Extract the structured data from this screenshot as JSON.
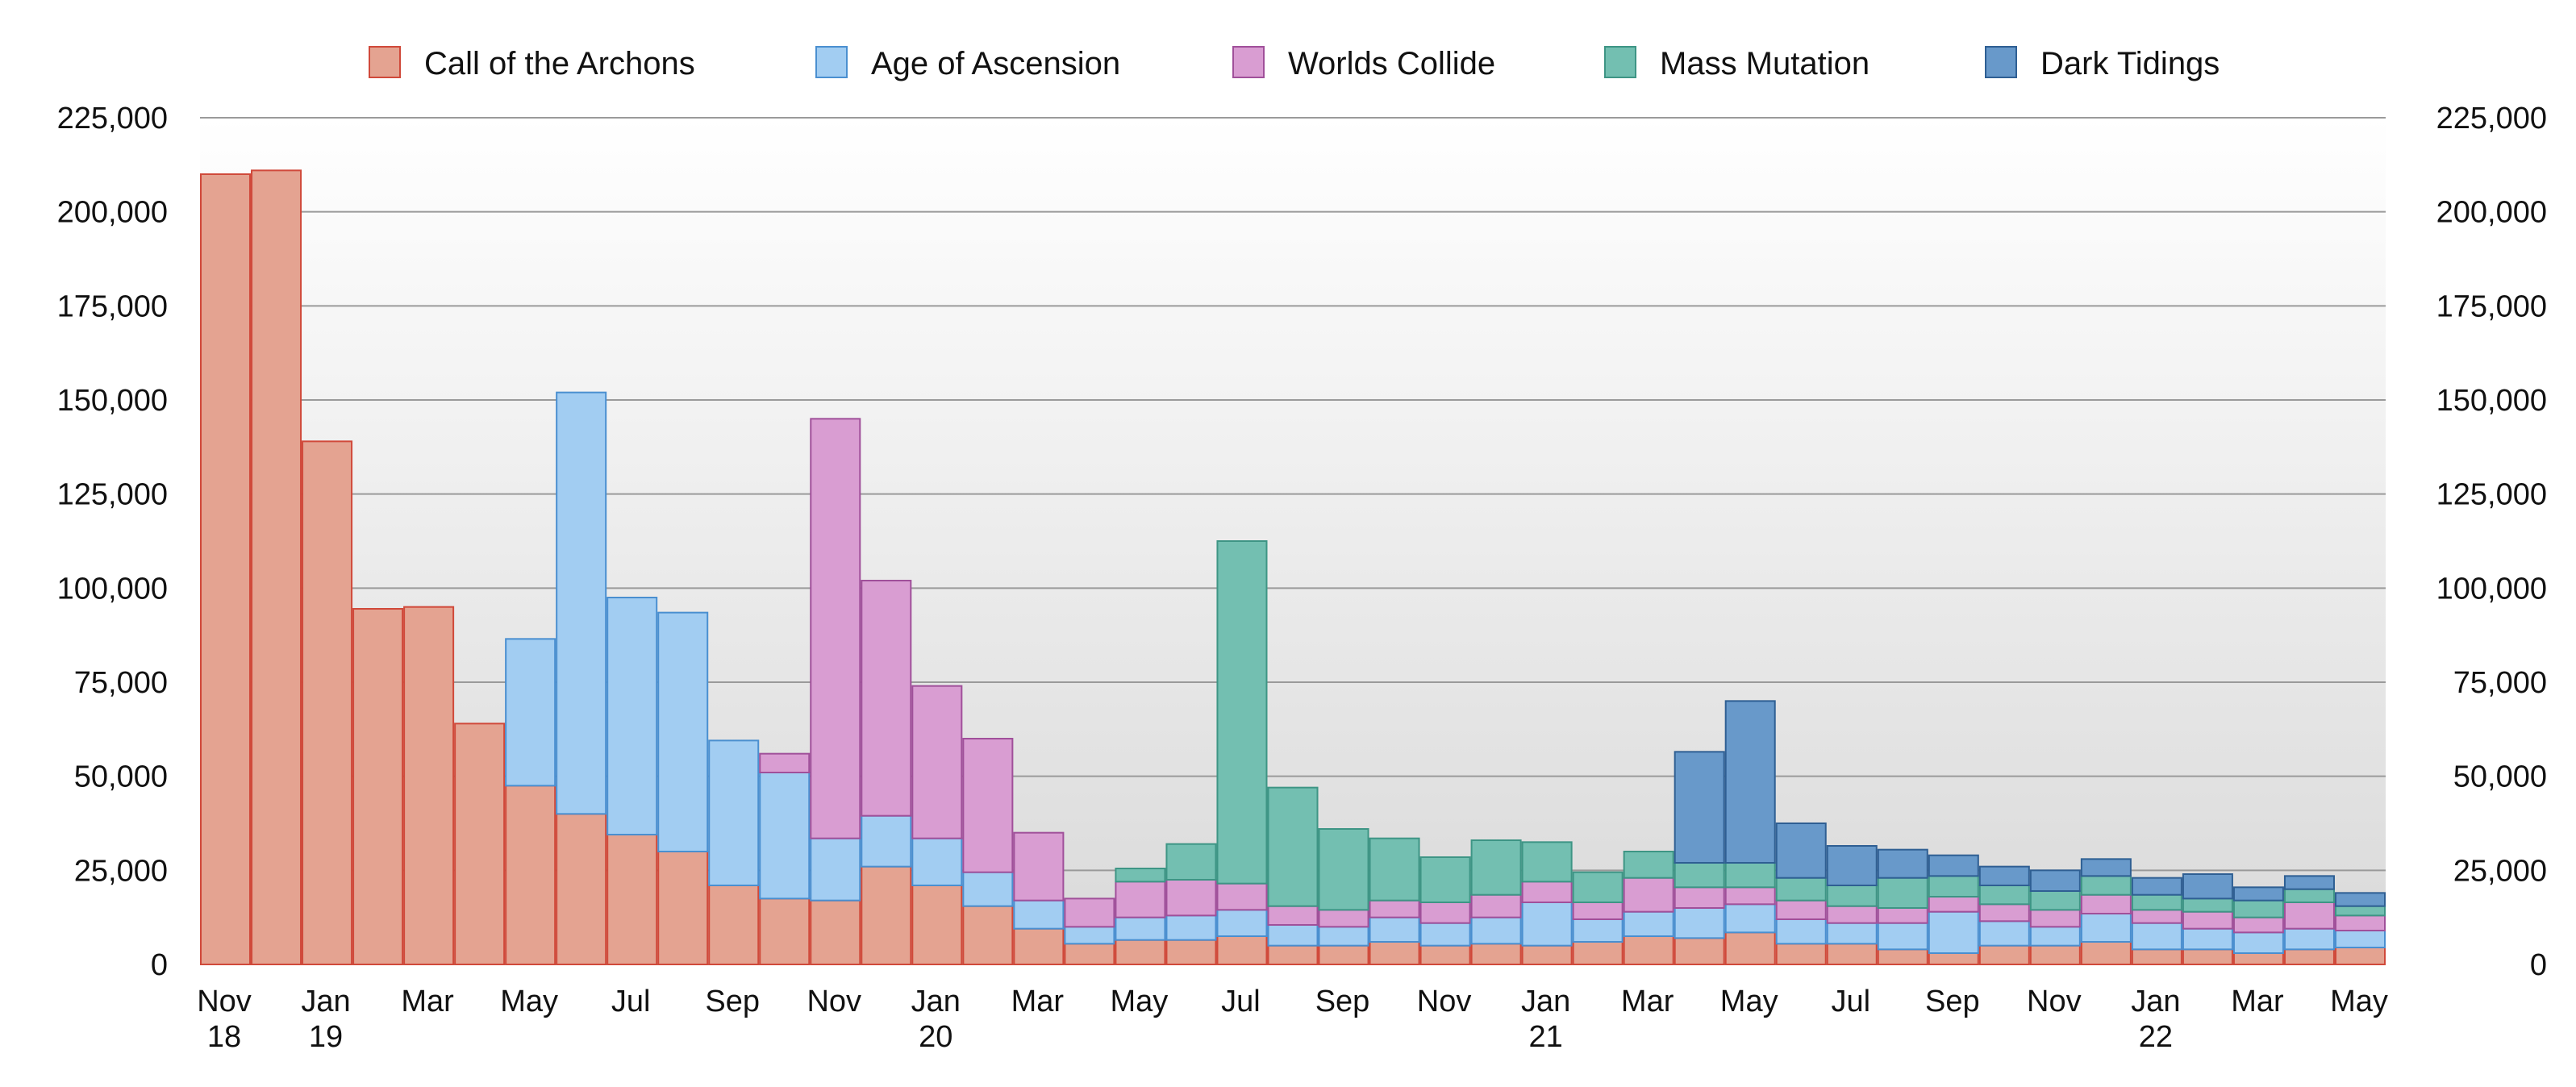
{
  "chart_data": {
    "type": "bar",
    "stacked": true,
    "title": "",
    "xlabel": "",
    "ylabel": "",
    "ylim": [
      0,
      225000
    ],
    "grid": true,
    "legend_position": "top",
    "y_ticks": [
      "0",
      "25,000",
      "50,000",
      "75,000",
      "100,000",
      "125,000",
      "150,000",
      "175,000",
      "200,000",
      "225,000"
    ],
    "y_tick_values": [
      0,
      25000,
      50000,
      75000,
      100000,
      125000,
      150000,
      175000,
      200000,
      225000
    ],
    "x_tick_labels": [
      {
        "index": 0,
        "month": "Nov",
        "year": "18"
      },
      {
        "index": 2,
        "month": "Jan",
        "year": "19"
      },
      {
        "index": 4,
        "month": "Mar",
        "year": ""
      },
      {
        "index": 6,
        "month": "May",
        "year": ""
      },
      {
        "index": 8,
        "month": "Jul",
        "year": ""
      },
      {
        "index": 10,
        "month": "Sep",
        "year": ""
      },
      {
        "index": 12,
        "month": "Nov",
        "year": ""
      },
      {
        "index": 14,
        "month": "Jan",
        "year": "20"
      },
      {
        "index": 16,
        "month": "Mar",
        "year": ""
      },
      {
        "index": 18,
        "month": "May",
        "year": ""
      },
      {
        "index": 20,
        "month": "Jul",
        "year": ""
      },
      {
        "index": 22,
        "month": "Sep",
        "year": ""
      },
      {
        "index": 24,
        "month": "Nov",
        "year": ""
      },
      {
        "index": 26,
        "month": "Jan",
        "year": "21"
      },
      {
        "index": 28,
        "month": "Mar",
        "year": ""
      },
      {
        "index": 30,
        "month": "May",
        "year": ""
      },
      {
        "index": 32,
        "month": "Jul",
        "year": ""
      },
      {
        "index": 34,
        "month": "Sep",
        "year": ""
      },
      {
        "index": 36,
        "month": "Nov",
        "year": ""
      },
      {
        "index": 38,
        "month": "Jan",
        "year": "22"
      },
      {
        "index": 40,
        "month": "Mar",
        "year": ""
      },
      {
        "index": 42,
        "month": "May",
        "year": ""
      }
    ],
    "categories": [
      "Nov 2018",
      "Dec 2018",
      "Jan 2019",
      "Feb 2019",
      "Mar 2019",
      "Apr 2019",
      "May 2019",
      "Jun 2019",
      "Jul 2019",
      "Aug 2019",
      "Sep 2019",
      "Oct 2019",
      "Nov 2019",
      "Dec 2019",
      "Jan 2020",
      "Feb 2020",
      "Mar 2020",
      "Apr 2020",
      "May 2020",
      "Jun 2020",
      "Jul 2020",
      "Aug 2020",
      "Sep 2020",
      "Oct 2020",
      "Nov 2020",
      "Dec 2020",
      "Jan 2021",
      "Feb 2021",
      "Mar 2021",
      "Apr 2021",
      "May 2021",
      "Jun 2021",
      "Jul 2021",
      "Aug 2021",
      "Sep 2021",
      "Oct 2021",
      "Nov 2021",
      "Dec 2021",
      "Jan 2022",
      "Feb 2022",
      "Mar 2022",
      "Apr 2022",
      "May 2022"
    ],
    "series": [
      {
        "name": "Call of the Archons",
        "color": "#e4a391",
        "stroke": "#d0493a",
        "values": [
          210000,
          211000,
          139000,
          94500,
          95000,
          64000,
          47500,
          40000,
          34500,
          30000,
          21000,
          17500,
          17000,
          26000,
          21000,
          15500,
          9500,
          5500,
          6500,
          6500,
          7500,
          5000,
          5000,
          6000,
          5000,
          5500,
          5000,
          6000,
          7500,
          7000,
          8500,
          5500,
          5500,
          4000,
          3000,
          5000,
          5000,
          6000,
          4000,
          4000,
          3000,
          4000,
          4500
        ]
      },
      {
        "name": "Age of Ascension",
        "color": "#a2cdf2",
        "stroke": "#4a8fd0",
        "values": [
          0,
          0,
          0,
          0,
          0,
          0,
          39000,
          112000,
          63000,
          63500,
          38500,
          33500,
          16500,
          13500,
          12500,
          9000,
          7500,
          4500,
          6000,
          6500,
          7000,
          5500,
          5000,
          6500,
          6000,
          7000,
          11500,
          6000,
          6500,
          8000,
          7500,
          6500,
          5500,
          7000,
          11000,
          6500,
          5000,
          7500,
          7000,
          5500,
          5500,
          5500,
          4500
        ]
      },
      {
        "name": "Worlds Collide",
        "color": "#d99dd2",
        "stroke": "#a0509a",
        "values": [
          0,
          0,
          0,
          0,
          0,
          0,
          0,
          0,
          0,
          0,
          0,
          5000,
          111500,
          62500,
          40500,
          35500,
          18000,
          7500,
          9500,
          9500,
          7000,
          5000,
          4500,
          4500,
          5500,
          6000,
          5500,
          4500,
          9000,
          5500,
          4500,
          5000,
          4500,
          4000,
          4000,
          4500,
          4500,
          5000,
          3500,
          4500,
          4000,
          7000,
          4000
        ]
      },
      {
        "name": "Mass Mutation",
        "color": "#73bfb1",
        "stroke": "#3e9585",
        "values": [
          0,
          0,
          0,
          0,
          0,
          0,
          0,
          0,
          0,
          0,
          0,
          0,
          0,
          0,
          0,
          0,
          0,
          0,
          3500,
          9500,
          91000,
          31500,
          21500,
          16500,
          12000,
          14500,
          10500,
          8000,
          7000,
          6500,
          6500,
          6000,
          5500,
          8000,
          5500,
          5000,
          5000,
          5000,
          4000,
          3500,
          4500,
          3500,
          2500
        ]
      },
      {
        "name": "Dark Tidings",
        "color": "#6899ca",
        "stroke": "#2f5f93",
        "values": [
          0,
          0,
          0,
          0,
          0,
          0,
          0,
          0,
          0,
          0,
          0,
          0,
          0,
          0,
          0,
          0,
          0,
          0,
          0,
          0,
          0,
          0,
          0,
          0,
          0,
          0,
          0,
          0,
          0,
          29500,
          43000,
          14500,
          10500,
          7500,
          5500,
          5000,
          5500,
          4500,
          4500,
          6500,
          3500,
          3500,
          3500
        ]
      }
    ]
  }
}
